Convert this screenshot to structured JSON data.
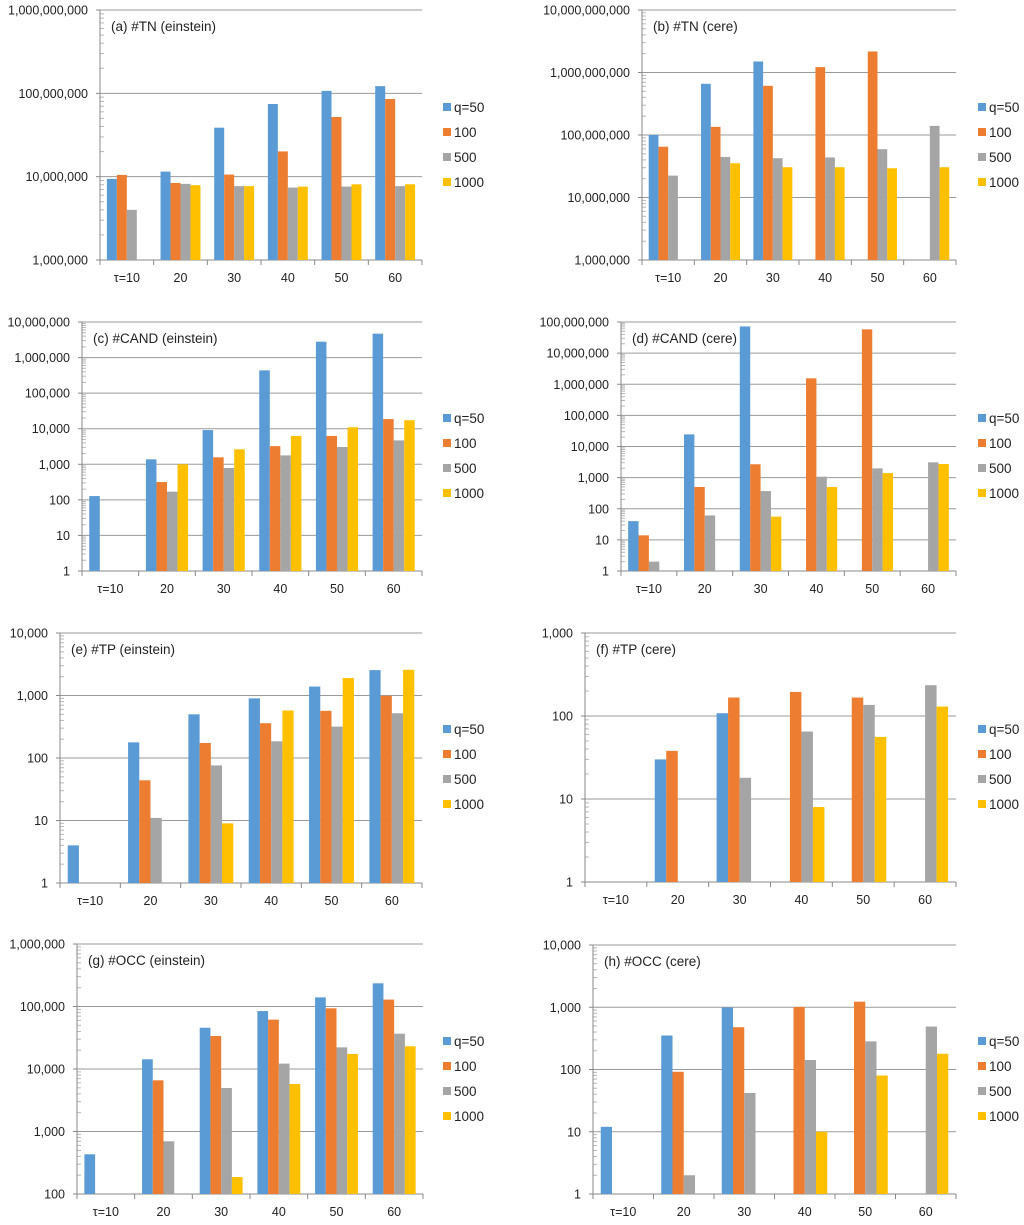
{
  "chart_data": [
    {
      "type": "bar",
      "title": "(a)  #TN (einstein)",
      "yscale": "log",
      "ylim": [
        1000000,
        1000000000
      ],
      "yticks": [
        1000000,
        10000000,
        100000000,
        1000000000
      ],
      "ytick_labels": [
        "1,000,000",
        "10,000,000",
        "100,000,000",
        "1,000,000,000"
      ],
      "categories": [
        "τ=10",
        "20",
        "30",
        "40",
        "50",
        "60"
      ],
      "series": [
        {
          "name": "q=50",
          "values": [
            9400000,
            11500000,
            38700000,
            74500000,
            107000000,
            122000000
          ]
        },
        {
          "name": "100",
          "values": [
            10500000,
            8400000,
            10600000,
            20100000,
            52000000,
            85500000
          ]
        },
        {
          "name": "500",
          "values": [
            4000000,
            8200000,
            7700000,
            7400000,
            7600000,
            7700000
          ]
        },
        {
          "name": "1000",
          "values": [
            null,
            7900000,
            7700000,
            7600000,
            8100000,
            8100000
          ]
        }
      ],
      "legend": "right",
      "grid": true
    },
    {
      "type": "bar",
      "title": "(b)  #TN (cere)",
      "yscale": "log",
      "ylim": [
        1000000,
        10000000000
      ],
      "yticks": [
        1000000,
        10000000,
        100000000,
        1000000000,
        10000000000
      ],
      "ytick_labels": [
        "1,000,000",
        "10,000,000",
        "100,000,000",
        "1,000,000,000",
        "10,000,000,000"
      ],
      "categories": [
        "τ=10",
        "20",
        "30",
        "40",
        "50",
        "60"
      ],
      "series": [
        {
          "name": "q=50",
          "values": [
            100000000,
            660000000,
            1500000000,
            null,
            null,
            null
          ]
        },
        {
          "name": "100",
          "values": [
            65000000,
            135000000,
            612000000,
            1220000000,
            2170000000,
            null
          ]
        },
        {
          "name": "500",
          "values": [
            22400000,
            44600000,
            42500000,
            43800000,
            59300000,
            140000000
          ]
        },
        {
          "name": "1000",
          "values": [
            null,
            35400000,
            30500000,
            30500000,
            29400000,
            30500000
          ]
        }
      ],
      "legend": "right",
      "grid": true
    },
    {
      "type": "bar",
      "title": "(c)  #CAND (einstein)",
      "yscale": "log",
      "ylim": [
        1,
        10000000
      ],
      "yticks": [
        1,
        10,
        100,
        1000,
        10000,
        100000,
        1000000,
        10000000
      ],
      "ytick_labels": [
        "1",
        "10",
        "100",
        "1,000",
        "10,000",
        "100,000",
        "1,000,000",
        "10,000,000"
      ],
      "categories": [
        "τ=10",
        "20",
        "30",
        "40",
        "50",
        "60"
      ],
      "series": [
        {
          "name": "q=50",
          "values": [
            128,
            1380,
            9170,
            437000,
            2800000,
            4700000
          ]
        },
        {
          "name": "100",
          "values": [
            null,
            317,
            1570,
            3240,
            6260,
            18700
          ]
        },
        {
          "name": "500",
          "values": [
            null,
            170,
            787,
            1780,
            3060,
            4700
          ]
        },
        {
          "name": "1000",
          "values": [
            null,
            1000,
            2640,
            6260,
            11000,
            17300
          ]
        }
      ],
      "legend": "right",
      "grid": true
    },
    {
      "type": "bar",
      "title": "(d)  #CAND (cere)",
      "yscale": "log",
      "ylim": [
        1,
        100000000
      ],
      "yticks": [
        1,
        10,
        100,
        1000,
        10000,
        100000,
        1000000,
        10000000,
        100000000
      ],
      "ytick_labels": [
        "1",
        "10",
        "100",
        "1,000",
        "10,000",
        "100,000",
        "1,000,000",
        "10,000,000",
        "100,000,000"
      ],
      "categories": [
        "τ=10",
        "20",
        "30",
        "40",
        "50",
        "60"
      ],
      "series": [
        {
          "name": "q=50",
          "values": [
            40,
            24500,
            72000000,
            null,
            null,
            null
          ]
        },
        {
          "name": "100",
          "values": [
            14,
            500,
            2690,
            1550000,
            58000000,
            null
          ]
        },
        {
          "name": "500",
          "values": [
            2,
            61,
            370,
            1070,
            1980,
            3100
          ]
        },
        {
          "name": "1000",
          "values": [
            null,
            null,
            56,
            500,
            1400,
            2730
          ]
        }
      ],
      "legend": "right",
      "grid": true
    },
    {
      "type": "bar",
      "title": "(e)  #TP (einstein)",
      "yscale": "log",
      "ylim": [
        1,
        10000
      ],
      "yticks": [
        1,
        10,
        100,
        1000,
        10000
      ],
      "ytick_labels": [
        "1",
        "10",
        "100",
        "1,000",
        "10,000"
      ],
      "categories": [
        "τ=10",
        "20",
        "30",
        "40",
        "50",
        "60"
      ],
      "series": [
        {
          "name": "q=50",
          "values": [
            4,
            178,
            500,
            900,
            1390,
            2550
          ]
        },
        {
          "name": "100",
          "values": [
            null,
            44,
            174,
            360,
            568,
            990
          ]
        },
        {
          "name": "500",
          "values": [
            null,
            11,
            76,
            185,
            318,
            520
          ]
        },
        {
          "name": "1000",
          "values": [
            null,
            null,
            9,
            575,
            1900,
            2580
          ]
        }
      ],
      "legend": "right",
      "grid": true
    },
    {
      "type": "bar",
      "title": "(f)  #TP (cere)",
      "yscale": "log",
      "ylim": [
        1,
        1000
      ],
      "yticks": [
        1,
        10,
        100,
        1000
      ],
      "ytick_labels": [
        "1",
        "10",
        "100",
        "1,000"
      ],
      "categories": [
        "τ=10",
        "20",
        "30",
        "40",
        "50",
        "60"
      ],
      "series": [
        {
          "name": "q=50",
          "values": [
            null,
            30,
            108,
            null,
            null,
            null
          ]
        },
        {
          "name": "100",
          "values": [
            null,
            38,
            167,
            195,
            167,
            null
          ]
        },
        {
          "name": "500",
          "values": [
            null,
            null,
            18,
            65,
            136,
            235
          ]
        },
        {
          "name": "1000",
          "values": [
            null,
            null,
            null,
            8,
            56,
            130
          ]
        }
      ],
      "legend": "right",
      "grid": true
    },
    {
      "type": "bar",
      "title": "(g)  #OCC (einstein)",
      "yscale": "log",
      "ylim": [
        100,
        1000000
      ],
      "yticks": [
        100,
        1000,
        10000,
        100000,
        1000000
      ],
      "ytick_labels": [
        "100",
        "1,000",
        "10,000",
        "100,000",
        "1,000,000"
      ],
      "categories": [
        "τ=10",
        "20",
        "30",
        "40",
        "50",
        "60"
      ],
      "series": [
        {
          "name": "q=50",
          "values": [
            432,
            14300,
            45700,
            84500,
            140000,
            235000
          ]
        },
        {
          "name": "100",
          "values": [
            null,
            6590,
            33700,
            61600,
            93600,
            129000
          ]
        },
        {
          "name": "500",
          "values": [
            null,
            697,
            4970,
            12200,
            22200,
            36700
          ]
        },
        {
          "name": "1000",
          "values": [
            null,
            null,
            187,
            5760,
            17400,
            23100
          ]
        }
      ],
      "legend": "right",
      "grid": true
    },
    {
      "type": "bar",
      "title": "(h)  #OCC (cere)",
      "yscale": "log",
      "ylim": [
        1,
        10000
      ],
      "yticks": [
        1,
        10,
        100,
        1000,
        10000
      ],
      "ytick_labels": [
        "1",
        "10",
        "100",
        "1,000",
        "10,000"
      ],
      "categories": [
        "τ=10",
        "20",
        "30",
        "40",
        "50",
        "60"
      ],
      "series": [
        {
          "name": "q=50",
          "values": [
            12,
            352,
            990,
            null,
            null,
            null
          ]
        },
        {
          "name": "100",
          "values": [
            null,
            92,
            478,
            1010,
            1230,
            null
          ]
        },
        {
          "name": "500",
          "values": [
            null,
            2,
            42,
            142,
            283,
            490
          ]
        },
        {
          "name": "1000",
          "values": [
            null,
            null,
            null,
            10,
            80,
            179
          ]
        }
      ],
      "legend": "right",
      "grid": true
    }
  ],
  "series_colors": [
    "#5B9BD5",
    "#ED7D31",
    "#A5A5A5",
    "#FFC000"
  ]
}
